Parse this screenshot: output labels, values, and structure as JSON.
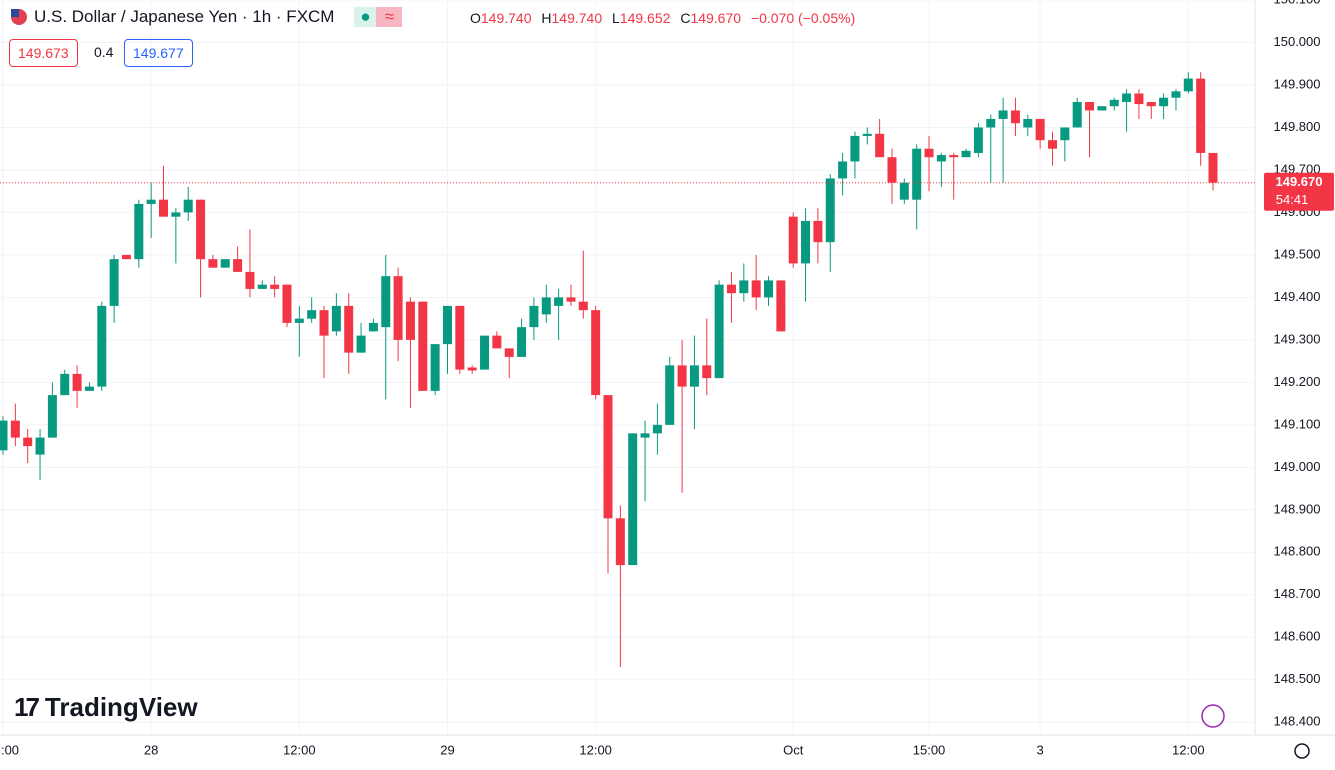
{
  "header": {
    "title": "U.S. Dollar / Japanese Yen · 1h · FXCM",
    "o_key": "O",
    "o_val": "149.740",
    "h_key": "H",
    "h_val": "149.740",
    "l_key": "L",
    "l_val": "149.652",
    "c_key": "C",
    "c_val": "149.670",
    "change": "−0.070 (−0.05%)",
    "bid": "149.673",
    "spread": "0.4",
    "ask": "149.677"
  },
  "watermark": "TradingView",
  "chart_data": {
    "type": "candlestick",
    "up_color": "#089981",
    "down_color": "#f23645",
    "grid": true,
    "open": [
      149.04,
      149.11,
      149.07,
      149.03,
      149.07,
      149.17,
      149.22,
      149.18,
      149.19,
      149.38,
      149.5,
      149.49,
      149.62,
      149.63,
      149.59,
      149.6,
      149.63,
      149.49,
      149.47,
      149.49,
      149.46,
      149.42,
      149.43,
      149.43,
      149.34,
      149.35,
      149.37,
      149.32,
      149.38,
      149.27,
      149.32,
      149.33,
      149.45,
      149.39,
      149.39,
      149.18,
      149.29,
      149.38,
      149.235,
      149.23,
      149.31,
      149.28,
      149.26,
      149.33,
      149.36,
      149.38,
      149.4,
      149.39,
      149.37,
      149.17,
      148.88,
      148.77,
      149.07,
      149.08,
      149.1,
      149.24,
      149.19,
      149.24,
      149.21,
      149.43,
      149.41,
      149.44,
      149.4,
      149.44,
      149.59,
      149.48,
      149.58,
      149.53,
      149.68,
      149.72,
      149.78,
      149.785,
      149.73,
      149.63,
      149.63,
      149.75,
      149.72,
      149.735,
      149.73,
      149.74,
      149.8,
      149.82,
      149.84,
      149.8,
      149.82,
      149.77,
      149.77,
      149.8,
      149.86,
      149.84,
      149.85,
      149.86,
      149.88,
      149.86,
      149.85,
      149.87,
      149.885,
      149.915,
      149.74
    ],
    "high": [
      149.12,
      149.15,
      149.09,
      149.09,
      149.2,
      149.23,
      149.24,
      149.2,
      149.39,
      149.5,
      149.5,
      149.63,
      149.67,
      149.71,
      149.61,
      149.66,
      149.63,
      149.5,
      149.49,
      149.52,
      149.56,
      149.44,
      149.45,
      149.43,
      149.38,
      149.4,
      149.38,
      149.41,
      149.41,
      149.34,
      149.35,
      149.5,
      149.47,
      149.4,
      149.39,
      149.29,
      149.38,
      149.38,
      149.24,
      149.31,
      149.32,
      149.28,
      149.35,
      149.4,
      149.43,
      149.42,
      149.43,
      149.51,
      149.38,
      149.17,
      148.91,
      149.08,
      149.11,
      149.15,
      149.26,
      149.3,
      149.31,
      149.35,
      149.44,
      149.46,
      149.48,
      149.5,
      149.45,
      149.44,
      149.6,
      149.61,
      149.61,
      149.69,
      149.74,
      149.79,
      149.8,
      149.82,
      149.75,
      149.68,
      149.76,
      149.78,
      149.74,
      149.74,
      149.75,
      149.81,
      149.83,
      149.87,
      149.87,
      149.83,
      149.82,
      149.79,
      149.8,
      149.87,
      149.86,
      149.85,
      149.87,
      149.89,
      149.89,
      149.86,
      149.88,
      149.89,
      149.93,
      149.93,
      149.74
    ],
    "low": [
      149.03,
      149.05,
      149.01,
      148.97,
      149.07,
      149.17,
      149.14,
      149.18,
      149.18,
      149.34,
      149.49,
      149.47,
      149.54,
      149.59,
      149.48,
      149.58,
      149.4,
      149.47,
      149.47,
      149.46,
      149.4,
      149.42,
      149.4,
      149.33,
      149.26,
      149.34,
      149.21,
      149.31,
      149.22,
      149.27,
      149.32,
      149.16,
      149.25,
      149.14,
      149.18,
      149.17,
      149.22,
      149.22,
      149.22,
      149.23,
      149.28,
      149.21,
      149.26,
      149.3,
      149.34,
      149.3,
      149.38,
      149.35,
      149.16,
      148.75,
      148.53,
      148.77,
      148.92,
      149.03,
      149.1,
      148.94,
      149.09,
      149.17,
      149.21,
      149.34,
      149.39,
      149.37,
      149.38,
      149.32,
      149.47,
      149.39,
      149.48,
      149.46,
      149.64,
      149.68,
      149.76,
      149.73,
      149.62,
      149.62,
      149.56,
      149.65,
      149.66,
      149.63,
      149.73,
      149.73,
      149.67,
      149.67,
      149.78,
      149.78,
      149.75,
      149.71,
      149.72,
      149.8,
      149.73,
      149.84,
      149.84,
      149.79,
      149.82,
      149.82,
      149.82,
      149.84,
      149.88,
      149.71,
      149.652
    ],
    "close": [
      149.11,
      149.07,
      149.05,
      149.07,
      149.17,
      149.22,
      149.18,
      149.19,
      149.38,
      149.49,
      149.49,
      149.62,
      149.63,
      149.59,
      149.6,
      149.63,
      149.49,
      149.47,
      149.49,
      149.46,
      149.42,
      149.43,
      149.42,
      149.34,
      149.35,
      149.37,
      149.31,
      149.38,
      149.27,
      149.31,
      149.34,
      149.45,
      149.3,
      149.3,
      149.18,
      149.29,
      149.38,
      149.23,
      149.228,
      149.31,
      149.28,
      149.26,
      149.33,
      149.38,
      149.4,
      149.4,
      149.39,
      149.37,
      149.17,
      148.88,
      148.77,
      149.08,
      149.08,
      149.1,
      149.24,
      149.19,
      149.24,
      149.21,
      149.43,
      149.41,
      149.44,
      149.4,
      149.44,
      149.32,
      149.48,
      149.58,
      149.53,
      149.68,
      149.72,
      149.78,
      149.785,
      149.73,
      149.67,
      149.67,
      149.75,
      149.73,
      149.735,
      149.73,
      149.745,
      149.8,
      149.82,
      149.84,
      149.81,
      149.82,
      149.77,
      149.75,
      149.8,
      149.86,
      149.84,
      149.85,
      149.865,
      149.88,
      149.855,
      149.85,
      149.87,
      149.885,
      149.915,
      149.74,
      149.67
    ],
    "ylim": [
      148.37,
      150.1
    ],
    "yticks": [
      {
        "value": 148.4,
        "label": "148.400"
      },
      {
        "value": 148.5,
        "label": "148.500"
      },
      {
        "value": 148.6,
        "label": "148.600"
      },
      {
        "value": 148.7,
        "label": "148.700"
      },
      {
        "value": 148.8,
        "label": "148.800"
      },
      {
        "value": 148.9,
        "label": "148.900"
      },
      {
        "value": 149.0,
        "label": "149.000"
      },
      {
        "value": 149.1,
        "label": "149.100"
      },
      {
        "value": 149.2,
        "label": "149.200"
      },
      {
        "value": 149.3,
        "label": "149.300"
      },
      {
        "value": 149.4,
        "label": "149.400"
      },
      {
        "value": 149.5,
        "label": "149.500"
      },
      {
        "value": 149.6,
        "label": "149.600"
      },
      {
        "value": 149.7,
        "label": "149.700"
      },
      {
        "value": 149.8,
        "label": "149.800"
      },
      {
        "value": 149.9,
        "label": "149.900"
      },
      {
        "value": 150.0,
        "label": "150.000"
      },
      {
        "value": 150.1,
        "label": "150.100"
      }
    ],
    "xticks": [
      {
        "value": 0,
        "label": ":00"
      },
      {
        "value": 12,
        "label": "28"
      },
      {
        "value": 24,
        "label": "12:00"
      },
      {
        "value": 36,
        "label": "29"
      },
      {
        "value": 48,
        "label": "12:00"
      },
      {
        "value": 64,
        "label": "Oct"
      },
      {
        "value": 75,
        "label": "15:00"
      },
      {
        "value": 84,
        "label": "3"
      },
      {
        "value": 96,
        "label": "12:00"
      }
    ],
    "last_price": {
      "value": 149.67,
      "label": "149.670"
    },
    "countdown": "54:41"
  }
}
